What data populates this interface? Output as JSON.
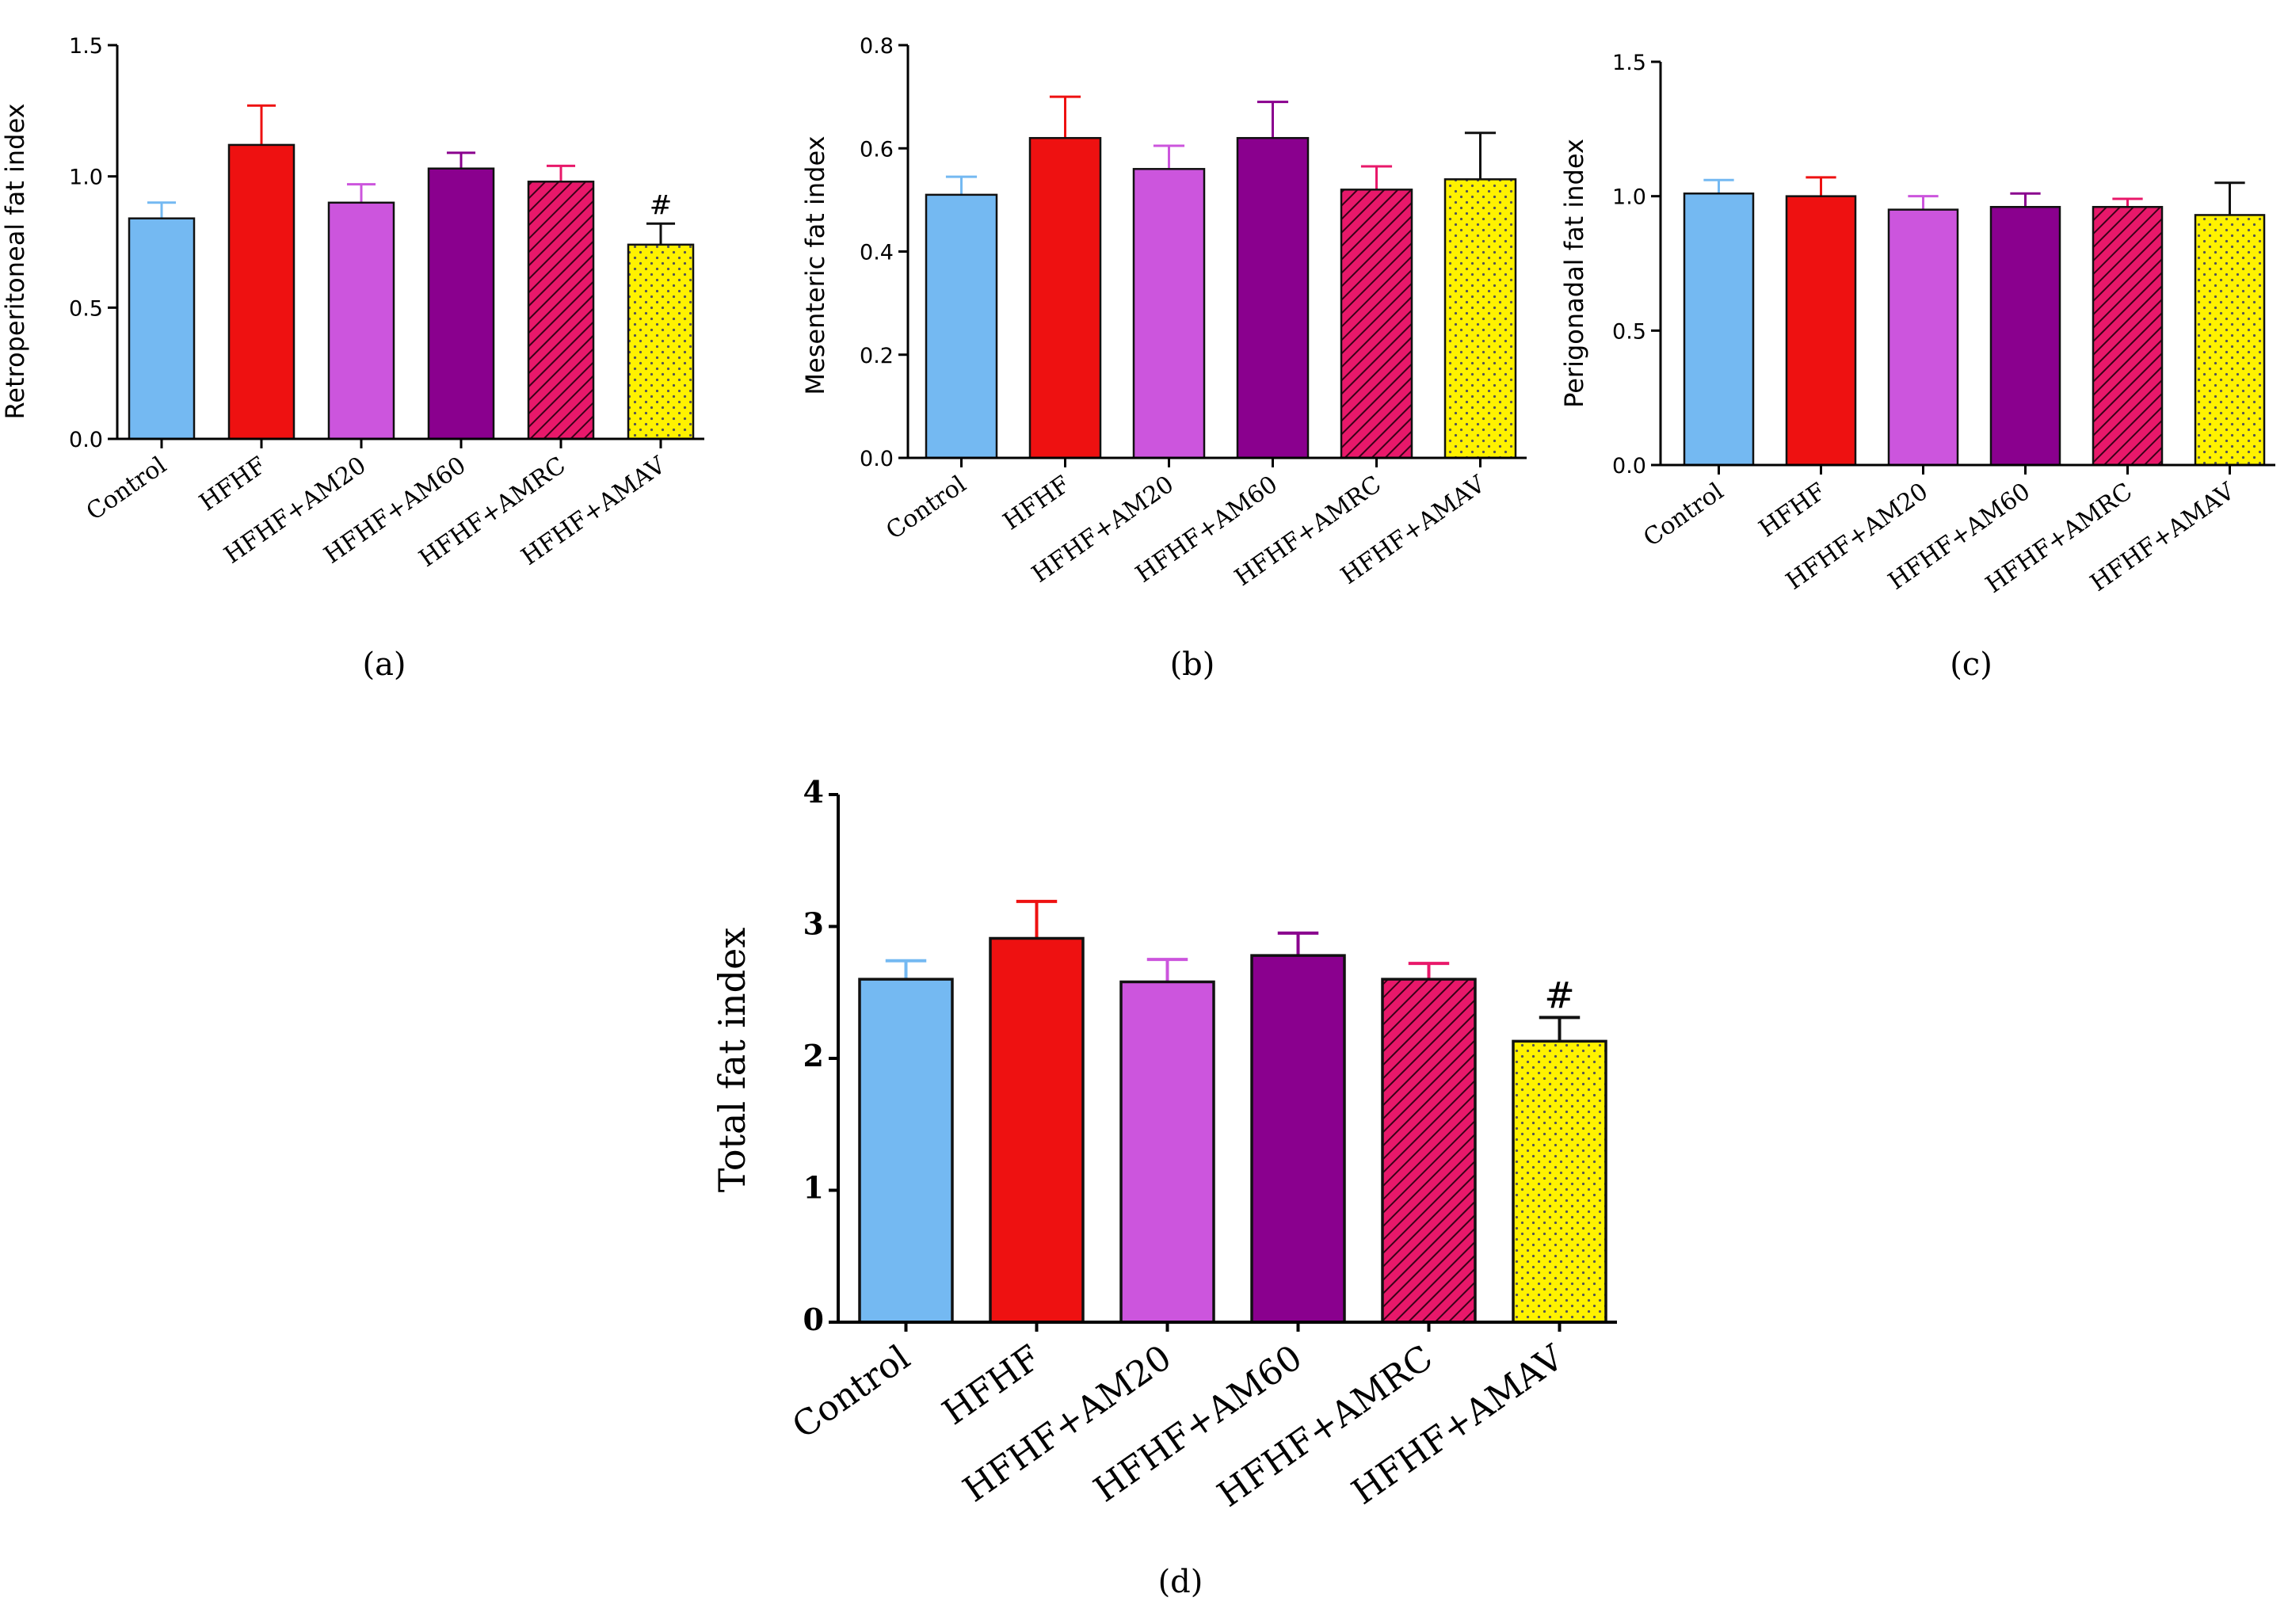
{
  "colors": {
    "Control": "#74b9f2",
    "HFHF": "#ee1111",
    "HFHF+AM20": "#cc55dd",
    "HFHF+AM60": "#8a008e",
    "HFHF+AMRC": "#e8186a",
    "HFHF+AMAV": "#fff200"
  },
  "chart_data": [
    {
      "type": "bar",
      "panel_label": "(a)",
      "ylabel": "Retroperitoneal fat index",
      "ylim": [
        0,
        1.5
      ],
      "yticks": [
        "0.0",
        "0.5",
        "1.0",
        "1.5"
      ],
      "categories": [
        "Control",
        "HFHF",
        "HFHF+AM20",
        "HFHF+AM60",
        "HFHF+AMRC",
        "HFHF+AMAV"
      ],
      "values": [
        0.84,
        1.12,
        0.9,
        1.03,
        0.98,
        0.74
      ],
      "errors": [
        0.06,
        0.15,
        0.07,
        0.06,
        0.06,
        0.08
      ],
      "annotations": [
        {
          "category": "HFHF+AMAV",
          "text": "#"
        }
      ]
    },
    {
      "type": "bar",
      "panel_label": "(b)",
      "ylabel": "Mesenteric fat index",
      "ylim": [
        0,
        0.8
      ],
      "yticks": [
        "0.0",
        "0.2",
        "0.4",
        "0.6",
        "0.8"
      ],
      "categories": [
        "Control",
        "HFHF",
        "HFHF+AM20",
        "HFHF+AM60",
        "HFHF+AMRC",
        "HFHF+AMAV"
      ],
      "values": [
        0.51,
        0.62,
        0.56,
        0.62,
        0.52,
        0.54
      ],
      "errors": [
        0.035,
        0.08,
        0.045,
        0.07,
        0.045,
        0.09
      ],
      "annotations": []
    },
    {
      "type": "bar",
      "panel_label": "(c)",
      "ylabel": "Perigonadal fat index",
      "ylim": [
        0,
        1.5
      ],
      "yticks": [
        "0.0",
        "0.5",
        "1.0",
        "1.5"
      ],
      "categories": [
        "Control",
        "HFHF",
        "HFHF+AM20",
        "HFHF+AM60",
        "HFHF+AMRC",
        "HFHF+AMAV"
      ],
      "values": [
        1.01,
        1.0,
        0.95,
        0.96,
        0.96,
        0.93
      ],
      "errors": [
        0.05,
        0.07,
        0.05,
        0.05,
        0.03,
        0.12
      ],
      "annotations": []
    },
    {
      "type": "bar",
      "panel_label": "(d)",
      "ylabel": "Total fat index",
      "ylim": [
        0,
        4
      ],
      "yticks": [
        "0",
        "1",
        "2",
        "3",
        "4"
      ],
      "categories": [
        "Control",
        "HFHF",
        "HFHF+AM20",
        "HFHF+AM60",
        "HFHF+AMRC",
        "HFHF+AMAV"
      ],
      "values": [
        2.6,
        2.91,
        2.58,
        2.78,
        2.6,
        2.13
      ],
      "errors": [
        0.14,
        0.28,
        0.17,
        0.17,
        0.12,
        0.18
      ],
      "annotations": [
        {
          "category": "HFHF+AMAV",
          "text": "#"
        }
      ]
    }
  ]
}
